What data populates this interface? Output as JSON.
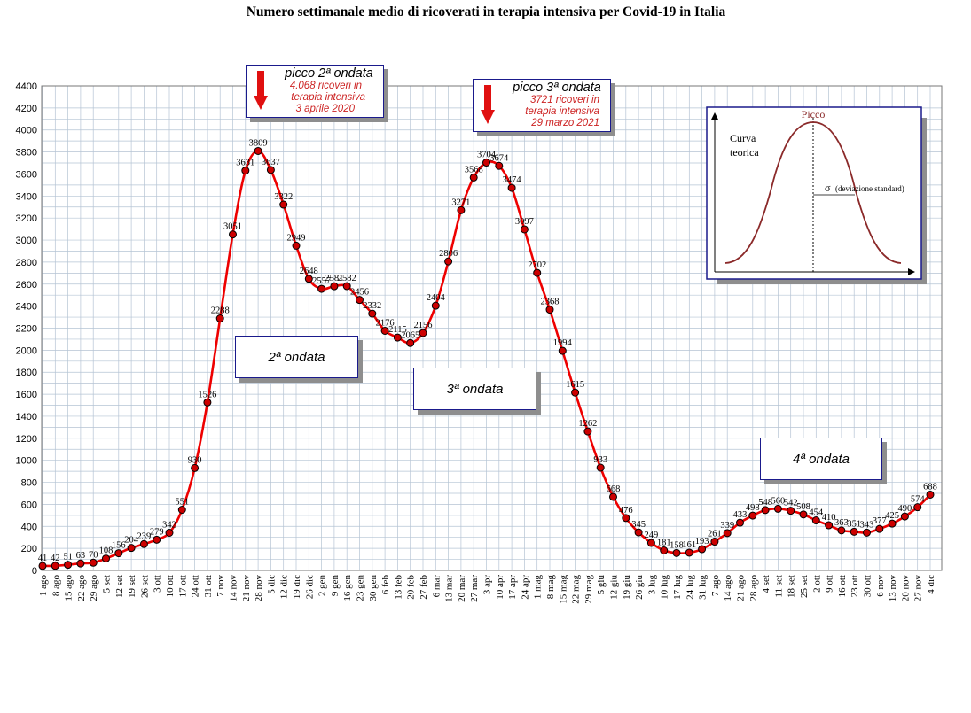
{
  "chart_data": {
    "type": "line",
    "title": "Numero settimanale medio di ricoverati in terapia intensiva per Covid-19 in Italia",
    "ylim": [
      0,
      4400
    ],
    "yticks": [
      0,
      200,
      400,
      600,
      800,
      1000,
      1200,
      1400,
      1600,
      1800,
      2000,
      2200,
      2400,
      2600,
      2800,
      3000,
      3200,
      3400,
      3600,
      3800,
      4000,
      4200,
      4400
    ],
    "grid": true,
    "x": [
      "1 ago",
      "8 ago",
      "15 ago",
      "22 ago",
      "29 ago",
      "5 set",
      "12 set",
      "19 set",
      "26 set",
      "3 ott",
      "10 ott",
      "17 ott",
      "24 ott",
      "31 ott",
      "7 nov",
      "14 nov",
      "21 nov",
      "28 nov",
      "5 dic",
      "12 dic",
      "19 dic",
      "26 dic",
      "2 gen",
      "9 gen",
      "16 gen",
      "23 gen",
      "30 gen",
      "6 feb",
      "13 feb",
      "20 feb",
      "27 feb",
      "6 mar",
      "13 mar",
      "20 mar",
      "27 mar",
      "3 apr",
      "10 apr",
      "17 apr",
      "24 apr",
      "1 mag",
      "8 mag",
      "15 mag",
      "22 mag",
      "29 mag",
      "5 giu",
      "12 giu",
      "19 giu",
      "26 giu",
      "3 lug",
      "10 lug",
      "17 lug",
      "24 lug",
      "31 lug",
      "7 ago",
      "14 ago",
      "21 ago",
      "28 ago",
      "4 set",
      "11 set",
      "18 set",
      "25 set",
      "2 ott",
      "9 ott",
      "16 ott",
      "23 ott",
      "30 ott",
      "6 nov",
      "13 nov",
      "20 nov",
      "27 nov",
      "4 dic"
    ],
    "series": [
      {
        "color": "#ee0000",
        "marker_color": "#cc0000",
        "values": [
          41,
          42,
          51,
          63,
          70,
          108,
          156,
          204,
          239,
          279,
          342,
          551,
          930,
          1526,
          2288,
          3051,
          3631,
          3809,
          3637,
          3322,
          2949,
          2648,
          2557,
          2581,
          2582,
          2456,
          2332,
          2176,
          2115,
          2065,
          2156,
          2404,
          2806,
          3271,
          3568,
          3704,
          3674,
          3474,
          3097,
          2702,
          2368,
          1994,
          1615,
          1262,
          933,
          668,
          476,
          345,
          249,
          181,
          158,
          161,
          193,
          261,
          339,
          433,
          498,
          548,
          560,
          542,
          508,
          454,
          410,
          363,
          351,
          343,
          377,
          425,
          490,
          574,
          688
        ],
        "labels": [
          "41",
          "42",
          "51",
          "63",
          "70",
          "108",
          "156",
          "204",
          "239",
          "279",
          "342",
          "551",
          "930",
          "1526",
          "2288",
          "3051",
          "3631",
          "3809",
          "3637",
          "3322",
          "2949",
          "2648",
          "2557",
          "2581",
          "2582",
          "2456",
          "2332",
          "2176",
          "2115",
          "2065",
          "2156",
          "2404",
          "2806",
          "3271",
          "3568",
          "3704",
          "3674",
          "3474",
          "3097",
          "2702",
          "2368",
          "1994",
          "1615",
          "1262",
          "933",
          "668",
          "476",
          "345",
          "249",
          "181",
          "158",
          "161",
          "193",
          "261",
          "339",
          "433",
          "498",
          "548",
          "560",
          "542",
          "508",
          "454",
          "410",
          "363",
          "351",
          "343",
          "377",
          "425",
          "490",
          "574",
          "688"
        ]
      }
    ],
    "annotations": {
      "peak2": {
        "title": "picco 2ª ondata",
        "lines": [
          "4.068 ricoveri in",
          "terapia intensiva",
          "3 aprile 2020"
        ]
      },
      "peak3": {
        "title": "picco 3ª ondata",
        "lines": [
          "3721 ricoveri in",
          "terapia intensiva",
          "29 marzo 2021"
        ]
      },
      "wave2": "2ª ondata",
      "wave3": "3ª ondata",
      "wave4": "4ª ondata"
    },
    "inset": {
      "peak_label": "Picco",
      "curve_label_1": "Curva",
      "curve_label_2": "teorica",
      "sigma_symbol": "σ",
      "sigma_label": "(deviazione standard)"
    }
  }
}
